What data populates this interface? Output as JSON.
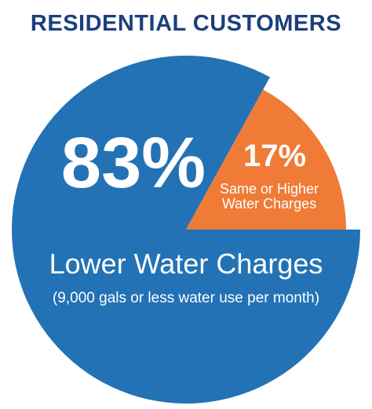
{
  "chart_data": {
    "type": "pie",
    "title": "RESIDENTIAL CUSTOMERS",
    "subtitle": "(9,000 gals or less water use per month)",
    "categories": [
      "Lower Water Charges",
      "Same or Higher Water Charges"
    ],
    "values": [
      83,
      17
    ],
    "value_labels": [
      "83%",
      "17%"
    ],
    "colors": [
      "#2372b5",
      "#ef7b37"
    ]
  }
}
